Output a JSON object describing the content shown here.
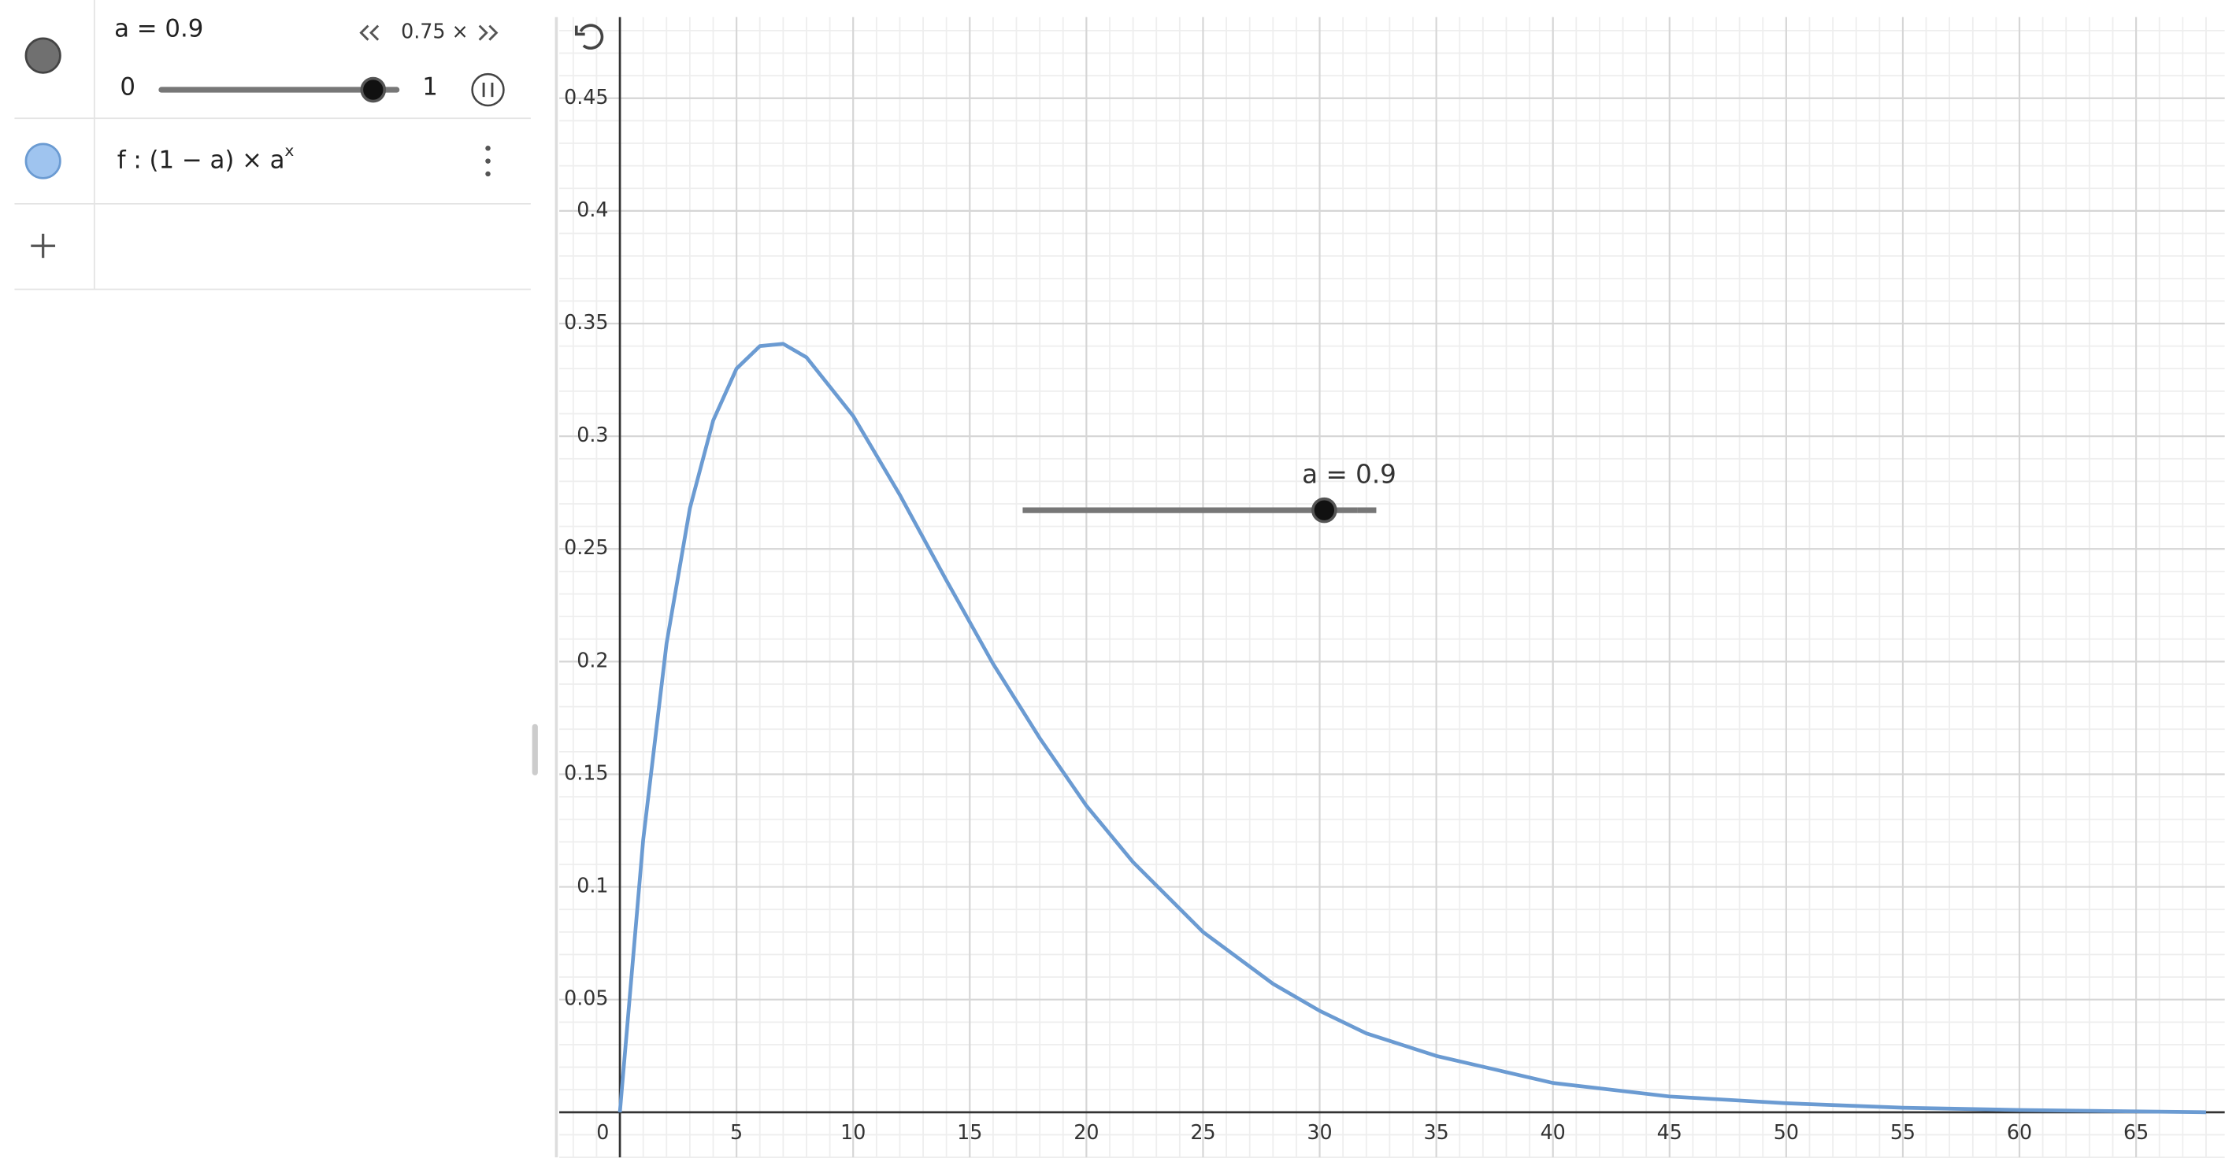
{
  "algebra_view": {
    "slider": {
      "label": "a = 0.9",
      "min": 0,
      "max": 1,
      "value": 0.9,
      "speed": "0.75 ×"
    },
    "function": {
      "expression": "f : (1 − a) × a",
      "exponent": "x"
    }
  },
  "chart_data": {
    "type": "line",
    "x": [
      0,
      1,
      2,
      3,
      4,
      5,
      6,
      7,
      8,
      10,
      12,
      14,
      16,
      18,
      20,
      22,
      25,
      28,
      30,
      32,
      35,
      40,
      45,
      50,
      55,
      60,
      68
    ],
    "values": [
      0,
      0.121,
      0.208,
      0.268,
      0.307,
      0.33,
      0.34,
      0.341,
      0.335,
      0.309,
      0.274,
      0.236,
      0.199,
      0.166,
      0.136,
      0.111,
      0.08,
      0.057,
      0.045,
      0.035,
      0.025,
      0.013,
      0.007,
      0.004,
      0.002,
      0.001,
      0
    ],
    "color": "#6b9bd2",
    "xlim": [
      -2.6,
      68.8
    ],
    "ylim": [
      -0.02,
      0.486
    ],
    "xticks": [
      5,
      10,
      15,
      20,
      25,
      30,
      35,
      40,
      45,
      50,
      55,
      60,
      65
    ],
    "yticks": [
      0.05,
      0.1,
      0.15,
      0.2,
      0.25,
      0.3,
      0.35,
      0.4,
      0.45
    ],
    "origin_label": 0,
    "grid": true,
    "minor_grid_divisions": 5,
    "slider": {
      "label": "a = 0.9",
      "value": 0.9,
      "min": 0,
      "max": 1
    }
  }
}
